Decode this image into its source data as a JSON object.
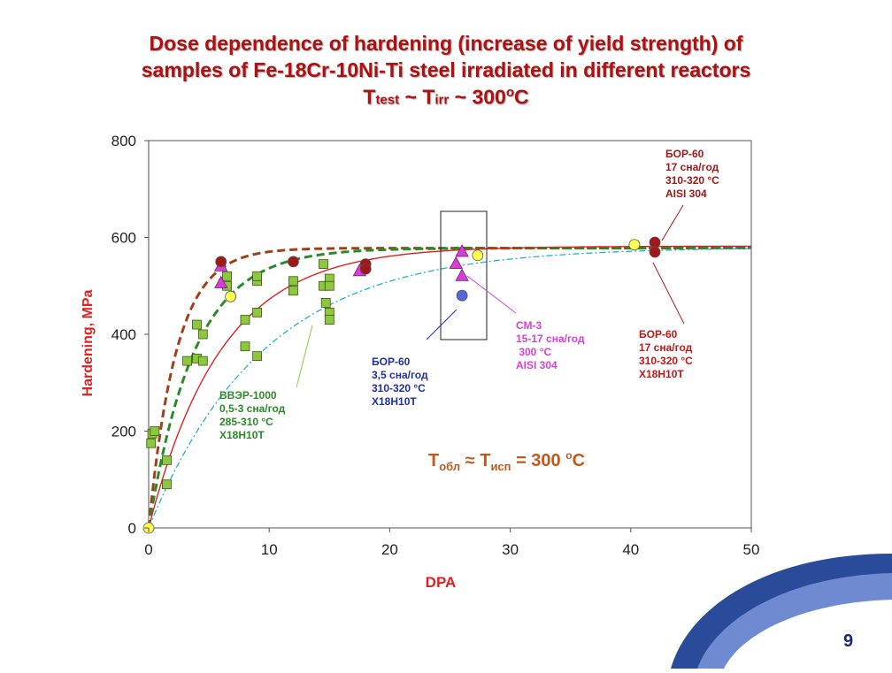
{
  "title": {
    "line1": "Dose dependence of hardening (increase of yield strength) of",
    "line2": "samples of Fe-18Cr-10Ni-Ti steel irradiated in different reactors",
    "line3_a": "T",
    "line3_b": "test",
    "line3_c": " ~ T",
    "line3_d": "irr",
    "line3_e": " ~ 300",
    "line3_f": "o",
    "line3_g": "C"
  },
  "page_number": "9",
  "chart_data": {
    "type": "scatter",
    "xlabel": "DPA",
    "ylabel": "Hardening, MPa",
    "xlim": [
      0,
      50
    ],
    "ylim": [
      0,
      800
    ],
    "xticks": [
      "0",
      "10",
      "20",
      "30",
      "40",
      "50"
    ],
    "yticks": [
      "0",
      "200",
      "400",
      "600",
      "800"
    ],
    "series": [
      {
        "name": "ВВЭР-1000 (squares)",
        "marker": "square",
        "color": "#8dc63f",
        "points": [
          [
            0.2,
            175
          ],
          [
            0.3,
            195
          ],
          [
            0.5,
            200
          ],
          [
            1.5,
            140
          ],
          [
            1.5,
            90
          ],
          [
            3.2,
            345
          ],
          [
            4,
            420
          ],
          [
            4,
            350
          ],
          [
            4.5,
            400
          ],
          [
            4.5,
            345
          ],
          [
            6.5,
            520
          ],
          [
            6.5,
            500
          ],
          [
            8,
            430
          ],
          [
            8,
            375
          ],
          [
            9,
            445
          ],
          [
            9,
            510
          ],
          [
            9,
            520
          ],
          [
            9,
            355
          ],
          [
            12,
            510
          ],
          [
            12,
            490
          ],
          [
            14.5,
            500
          ],
          [
            14.5,
            545
          ],
          [
            14.7,
            465
          ],
          [
            15,
            515
          ],
          [
            15,
            500
          ],
          [
            15,
            445
          ],
          [
            15,
            430
          ]
        ]
      },
      {
        "name": "СМ-3 (triangles)",
        "marker": "triangle",
        "color": "#d63fd6",
        "points": [
          [
            6,
            540
          ],
          [
            6,
            505
          ],
          [
            17.5,
            530
          ],
          [
            25.5,
            545
          ],
          [
            26,
            570
          ],
          [
            26,
            520
          ]
        ]
      },
      {
        "name": "БОР-60 17 сна/год AISI 304",
        "marker": "circle",
        "color": "#a01818",
        "points": [
          [
            6,
            550
          ],
          [
            12,
            550
          ],
          [
            18,
            545
          ],
          [
            18,
            535
          ],
          [
            42,
            590
          ],
          [
            42,
            570
          ]
        ]
      },
      {
        "name": "БОР-60 17 сна/год X18H10T",
        "marker": "circle",
        "color": "#ffff50",
        "points": [
          [
            0,
            0
          ],
          [
            6.8,
            478
          ],
          [
            27.3,
            563
          ],
          [
            40.3,
            585
          ]
        ]
      },
      {
        "name": "БОР-60 3,5 сна/год",
        "marker": "circle",
        "color": "#5566dd",
        "points": [
          [
            26,
            480
          ]
        ]
      }
    ],
    "curves": [
      {
        "name": "fit-brown-dashed",
        "color": "#a0401a",
        "style": "dashed",
        "ymax": 578,
        "tau": 2.3
      },
      {
        "name": "fit-green-dashed",
        "color": "#2a8a2a",
        "style": "dashed",
        "ymax": 578,
        "tau": 3.8
      },
      {
        "name": "fit-red-solid",
        "color": "#e02020",
        "style": "solid",
        "ymax": 582,
        "tau": 6.0
      },
      {
        "name": "fit-cyan-dashdot",
        "color": "#20b0d0",
        "style": "dashdot",
        "ymax": 580,
        "tau": 9.5
      }
    ],
    "annotations": [
      {
        "id": "bor60-aisi",
        "lines": [
          "БОР-60",
          "17 сна/год",
          "310-320 °C",
          "AISI 304"
        ],
        "color": "#a01818"
      },
      {
        "id": "cm3",
        "lines": [
          "СМ-3",
          "15-17 сна/год",
          " 300 °C",
          "AISI 304"
        ],
        "color": "#d63fd6"
      },
      {
        "id": "bor60-x18",
        "lines": [
          "БОР-60",
          "17 сна/год",
          "310-320 °C",
          "X18H10T"
        ],
        "color": "#c01818"
      },
      {
        "id": "bor60-35",
        "lines": [
          "БОР-60",
          "3,5 сна/год",
          "310-320 °C",
          "X18H10T"
        ],
        "color": "#2030a0"
      },
      {
        "id": "vver",
        "lines": [
          "ВВЭР-1000",
          "0,5-3 сна/год",
          "285-310 °C",
          "X18H10T"
        ],
        "color": "#2a8a2a"
      }
    ],
    "temperature_note": "Tобл ≈ Tисп = 300 °C"
  },
  "colors": {
    "title": "#b01010",
    "axis_label": "#e02020",
    "corner_blue": "#2a4a9a"
  }
}
